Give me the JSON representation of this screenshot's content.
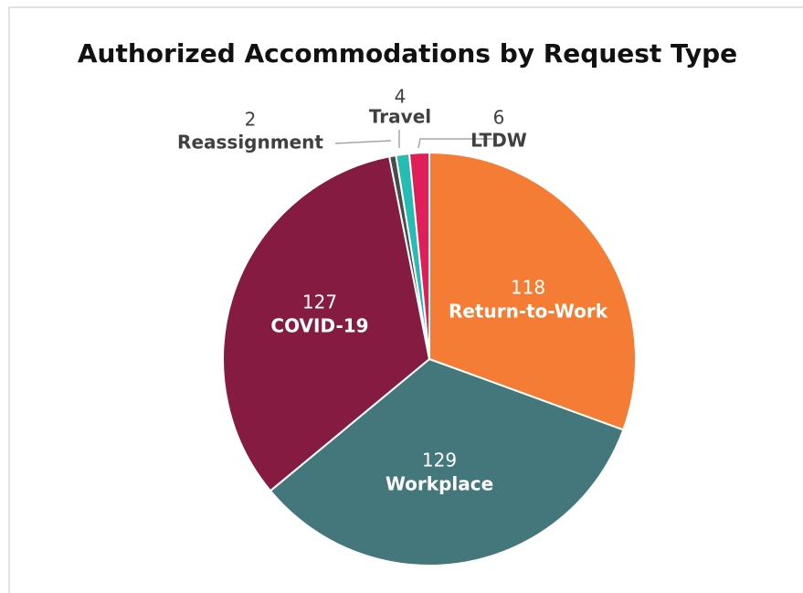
{
  "chart_data": {
    "type": "pie",
    "title": "Authorized Accommodations by Request Type",
    "categories": [
      "Return-to-Work",
      "Workplace",
      "COVID-19",
      "Reassignment",
      "Travel",
      "LTDW"
    ],
    "values": [
      118,
      129,
      127,
      2,
      4,
      6
    ],
    "colors": [
      "#f47c34",
      "#44777b",
      "#861b42",
      "#4a4a4a",
      "#26bcb4",
      "#e01e5a"
    ]
  }
}
